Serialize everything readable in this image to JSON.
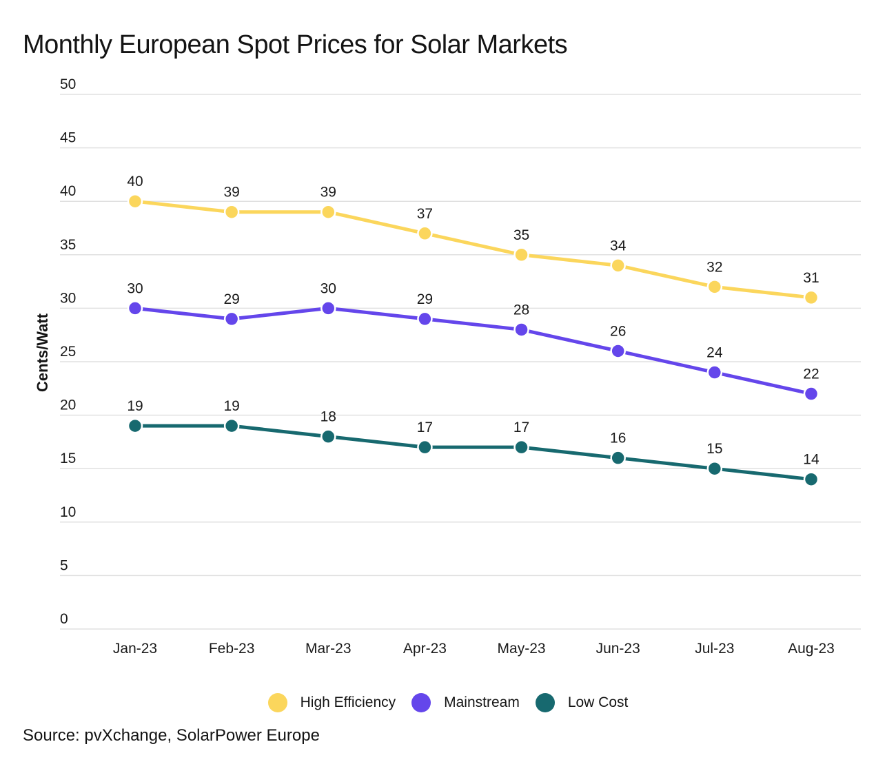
{
  "title": "Monthly European Spot Prices for Solar Markets",
  "source": "Source: pvXchange, SolarPower Europe",
  "chart_data": {
    "type": "line",
    "title": "Monthly European Spot Prices for Solar Markets",
    "xlabel": "",
    "ylabel": "Cents/Watt",
    "categories": [
      "Jan-23",
      "Feb-23",
      "Mar-23",
      "Apr-23",
      "May-23",
      "Jun-23",
      "Jul-23",
      "Aug-23"
    ],
    "series": [
      {
        "name": "High Efficiency",
        "color": "#FBD65C",
        "values": [
          40,
          39,
          39,
          37,
          35,
          34,
          32,
          31
        ]
      },
      {
        "name": "Mainstream",
        "color": "#6446EB",
        "values": [
          30,
          29,
          30,
          29,
          28,
          26,
          24,
          22
        ]
      },
      {
        "name": "Low Cost",
        "color": "#17696F",
        "values": [
          19,
          19,
          18,
          17,
          17,
          16,
          15,
          14
        ]
      }
    ],
    "ylim": [
      0,
      50
    ],
    "ytick_step": 5,
    "grid": "horizontal",
    "gridline_color": "#E0E0E0",
    "text_color": "#1A1A1A",
    "data_labels": true,
    "legend_position": "bottom"
  }
}
